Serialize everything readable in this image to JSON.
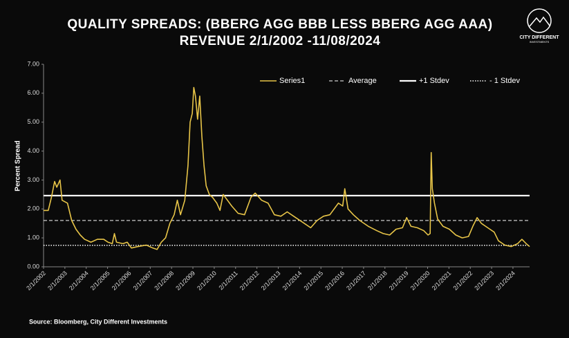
{
  "chart_data": {
    "type": "line",
    "title": "QUALITY SPREADS: (BBERG AGG BBB LESS BBERG AGG AAA)",
    "subtitle": "REVENUE 2/1/2002 -11/08/2024",
    "logo": {
      "name": "CITY DIFFERENT",
      "tagline": "INVESTMENTS"
    },
    "y_label": "Percent Spread",
    "source": "Source: Bloomberg, City Different Investments",
    "xlim": [
      2002.08,
      2024.86
    ],
    "ylim": [
      0,
      7
    ],
    "yticks": [
      {
        "value": 0,
        "label": "0.00"
      },
      {
        "value": 1,
        "label": "1.00"
      },
      {
        "value": 2,
        "label": "2.00"
      },
      {
        "value": 3,
        "label": "3.00"
      },
      {
        "value": 4,
        "label": "4.00"
      },
      {
        "value": 5,
        "label": "5.00"
      },
      {
        "value": 6,
        "label": "6.00"
      },
      {
        "value": 7,
        "label": "7.00"
      }
    ],
    "xticks": [
      {
        "value": 2002.08,
        "label": "2/1/2002"
      },
      {
        "value": 2003.08,
        "label": "2/1/2003"
      },
      {
        "value": 2004.08,
        "label": "2/1/2004"
      },
      {
        "value": 2005.08,
        "label": "2/1/2005"
      },
      {
        "value": 2006.08,
        "label": "2/1/2006"
      },
      {
        "value": 2007.08,
        "label": "2/1/2007"
      },
      {
        "value": 2008.08,
        "label": "2/1/2008"
      },
      {
        "value": 2009.08,
        "label": "2/1/2009"
      },
      {
        "value": 2010.08,
        "label": "2/1/2010"
      },
      {
        "value": 2011.08,
        "label": "2/1/2011"
      },
      {
        "value": 2012.08,
        "label": "2/1/2012"
      },
      {
        "value": 2013.08,
        "label": "2/1/2013"
      },
      {
        "value": 2014.08,
        "label": "2/1/2014"
      },
      {
        "value": 2015.08,
        "label": "2/1/2015"
      },
      {
        "value": 2016.08,
        "label": "2/1/2016"
      },
      {
        "value": 2017.08,
        "label": "2/1/2017"
      },
      {
        "value": 2018.08,
        "label": "2/1/2018"
      },
      {
        "value": 2019.08,
        "label": "2/1/2019"
      },
      {
        "value": 2020.08,
        "label": "2/1/2020"
      },
      {
        "value": 2021.08,
        "label": "2/1/2021"
      },
      {
        "value": 2022.08,
        "label": "2/1/2022"
      },
      {
        "value": 2023.08,
        "label": "2/1/2023"
      },
      {
        "value": 2024.08,
        "label": "2/1/2024"
      }
    ],
    "legend": "top-right",
    "series": [
      {
        "name": "Series1",
        "color": "#e8c548",
        "dash": "solid",
        "width": 1.6,
        "x": [
          2002.08,
          2002.3,
          2002.45,
          2002.6,
          2002.7,
          2002.85,
          2002.95,
          2003.2,
          2003.4,
          2003.6,
          2003.8,
          2004.0,
          2004.3,
          2004.6,
          2004.9,
          2005.1,
          2005.3,
          2005.4,
          2005.5,
          2005.8,
          2006.0,
          2006.2,
          2006.5,
          2006.9,
          2007.2,
          2007.4,
          2007.6,
          2007.8,
          2008.0,
          2008.2,
          2008.35,
          2008.5,
          2008.7,
          2008.85,
          2008.95,
          2009.05,
          2009.12,
          2009.2,
          2009.3,
          2009.4,
          2009.5,
          2009.6,
          2009.7,
          2009.85,
          2010.0,
          2010.2,
          2010.35,
          2010.5,
          2010.7,
          2010.9,
          2011.2,
          2011.5,
          2011.8,
          2012.0,
          2012.3,
          2012.6,
          2012.9,
          2013.2,
          2013.5,
          2013.8,
          2014.2,
          2014.6,
          2014.9,
          2015.2,
          2015.5,
          2015.9,
          2016.1,
          2016.2,
          2016.35,
          2016.6,
          2016.9,
          2017.3,
          2017.7,
          2018.0,
          2018.3,
          2018.6,
          2018.9,
          2019.1,
          2019.3,
          2019.6,
          2019.9,
          2020.1,
          2020.2,
          2020.25,
          2020.3,
          2020.4,
          2020.55,
          2020.8,
          2021.1,
          2021.4,
          2021.7,
          2022.0,
          2022.2,
          2022.4,
          2022.6,
          2022.8,
          2023.0,
          2023.2,
          2023.4,
          2023.7,
          2024.0,
          2024.3,
          2024.5,
          2024.7,
          2024.86
        ],
        "values": [
          1.95,
          1.95,
          2.4,
          2.95,
          2.75,
          3.0,
          2.3,
          2.2,
          1.6,
          1.3,
          1.1,
          0.95,
          0.85,
          0.95,
          0.95,
          0.85,
          0.8,
          1.15,
          0.85,
          0.8,
          0.85,
          0.65,
          0.7,
          0.75,
          0.65,
          0.6,
          0.85,
          1.0,
          1.5,
          1.8,
          2.3,
          1.8,
          2.3,
          3.5,
          5.0,
          5.3,
          6.2,
          5.9,
          5.1,
          5.9,
          4.5,
          3.5,
          2.8,
          2.5,
          2.4,
          2.2,
          1.95,
          2.5,
          2.3,
          2.1,
          1.85,
          1.8,
          2.4,
          2.55,
          2.3,
          2.2,
          1.8,
          1.75,
          1.9,
          1.75,
          1.55,
          1.35,
          1.6,
          1.75,
          1.8,
          2.2,
          2.1,
          2.7,
          2.0,
          1.8,
          1.6,
          1.4,
          1.25,
          1.15,
          1.1,
          1.3,
          1.35,
          1.7,
          1.4,
          1.35,
          1.25,
          1.1,
          1.15,
          3.95,
          2.7,
          2.2,
          1.65,
          1.4,
          1.3,
          1.1,
          1.0,
          1.05,
          1.4,
          1.7,
          1.5,
          1.4,
          1.3,
          1.2,
          0.9,
          0.75,
          0.7,
          0.8,
          0.95,
          0.8,
          0.7
        ]
      },
      {
        "name": "Average",
        "color": "#ffffff",
        "dash": "dashed",
        "width": 1,
        "x": [
          2002.08,
          2024.86
        ],
        "values": [
          1.6,
          1.6
        ]
      },
      {
        "name": "+1 Stdev",
        "color": "#ffffff",
        "dash": "solid",
        "width": 2.2,
        "x": [
          2002.08,
          2024.86
        ],
        "values": [
          2.46,
          2.46
        ]
      },
      {
        "name": "- 1 Stdev",
        "color": "#ffffff",
        "dash": "dotted",
        "width": 1.4,
        "x": [
          2002.08,
          2024.86
        ],
        "values": [
          0.74,
          0.74
        ]
      }
    ]
  }
}
